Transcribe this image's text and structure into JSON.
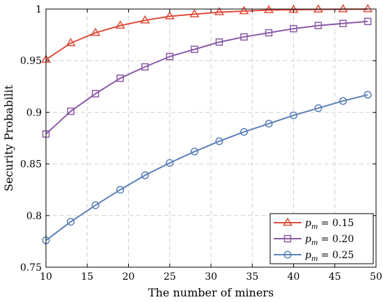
{
  "chart_data": {
    "type": "line",
    "xlabel": "The number of miners",
    "ylabel": "Security Probabilit",
    "xlim": [
      10,
      50
    ],
    "ylim": [
      0.75,
      1
    ],
    "xticks": [
      10,
      15,
      20,
      25,
      30,
      35,
      40,
      45,
      50
    ],
    "yticks": [
      0.75,
      0.8,
      0.85,
      0.9,
      0.95,
      1
    ],
    "ytick_labels": [
      "0.75",
      "0.8",
      "0.85",
      "0.9",
      "0.95",
      "1"
    ],
    "grid": true,
    "legend_position": "bottom-right",
    "x": [
      10,
      13,
      16,
      19,
      22,
      25,
      28,
      31,
      34,
      37,
      40,
      43,
      46,
      49
    ],
    "series": [
      {
        "label_main": "p",
        "label_sub": "m",
        "label_rest": " = 0.15",
        "color": "#e04b3a",
        "marker": "triangle",
        "values": [
          0.951,
          0.967,
          0.977,
          0.984,
          0.989,
          0.993,
          0.995,
          0.997,
          0.998,
          0.999,
          0.9993,
          0.9996,
          0.9998,
          0.9999
        ]
      },
      {
        "label_main": "p",
        "label_sub": "m",
        "label_rest": " = 0.20",
        "color": "#8a5aa8",
        "marker": "square",
        "values": [
          0.879,
          0.901,
          0.918,
          0.933,
          0.944,
          0.954,
          0.961,
          0.968,
          0.973,
          0.977,
          0.981,
          0.984,
          0.986,
          0.988
        ]
      },
      {
        "label_main": "p",
        "label_sub": "m",
        "label_rest": " = 0.25",
        "color": "#5b7fb8",
        "marker": "circle",
        "values": [
          0.776,
          0.794,
          0.81,
          0.825,
          0.839,
          0.851,
          0.862,
          0.872,
          0.881,
          0.889,
          0.897,
          0.904,
          0.911,
          0.917
        ]
      }
    ]
  }
}
